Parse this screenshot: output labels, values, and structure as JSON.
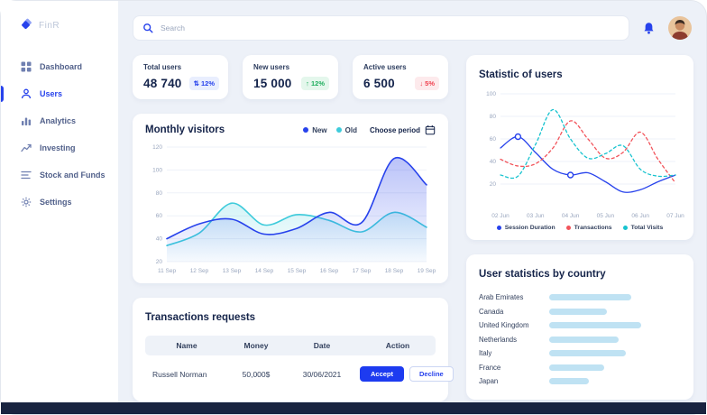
{
  "app": {
    "logo_text": "FinR"
  },
  "sidebar": {
    "items": [
      {
        "label": "Dashboard"
      },
      {
        "label": "Users"
      },
      {
        "label": "Analytics"
      },
      {
        "label": "Investing"
      },
      {
        "label": "Stock and Funds"
      },
      {
        "label": "Settings"
      }
    ],
    "active_label": "Users"
  },
  "topbar": {
    "search_placeholder": "Search"
  },
  "stats": [
    {
      "label": "Total users",
      "value": "48 740",
      "trend_icon": "⇅",
      "change": "12%"
    },
    {
      "label": "New users",
      "value": "15 000",
      "trend_icon": "↑",
      "change": "12%"
    },
    {
      "label": "Active users",
      "value": "6 500",
      "trend_icon": "↓",
      "change": "5%"
    }
  ],
  "monthly": {
    "title": "Monthly visitors",
    "period_label": "Choose period"
  },
  "transactions": {
    "title": "Transactions requests",
    "columns": [
      "Name",
      "Money",
      "Date",
      "Action"
    ],
    "rows": [
      {
        "name": "Russell Norman",
        "money": "50,000$",
        "date": "30/06/2021",
        "accept_label": "Accept",
        "decline_label": "Decline"
      }
    ]
  },
  "right": {
    "stat_title": "Statistic of users",
    "country_title": "User statistics by country"
  },
  "chart_data": [
    {
      "type": "area",
      "title": "Monthly visitors",
      "x_labels": [
        "11 Sep",
        "12 Sep",
        "13 Sep",
        "14 Sep",
        "15 Sep",
        "16 Sep",
        "17 Sep",
        "18 Sep",
        "19 Sep"
      ],
      "y_ticks": [
        20,
        40,
        60,
        80,
        100,
        120
      ],
      "ylim": [
        20,
        120
      ],
      "stroke_width": 1.6,
      "series": [
        {
          "name": "Old",
          "color": "#3ecbdb",
          "fill_opacity": 0.22,
          "values": [
            34,
            45,
            71,
            52,
            61,
            56,
            46,
            63,
            50
          ]
        },
        {
          "name": "New",
          "color": "#2742ec",
          "fill_opacity": 0.32,
          "values": [
            40,
            53,
            57,
            44,
            49,
            63,
            54,
            110,
            87
          ]
        }
      ]
    },
    {
      "type": "line",
      "title": "Statistic of users",
      "x_labels": [
        "02 Jun",
        "03 Jun",
        "04 Jun",
        "05 Jun",
        "06 Jun",
        "07 Jun"
      ],
      "y_ticks": [
        20,
        40,
        60,
        80,
        100
      ],
      "ylim": [
        0,
        100
      ],
      "stroke_width": 1.3,
      "series": [
        {
          "name": "Session Duration",
          "color": "#2742ec",
          "markers": [
            1,
            4
          ],
          "values": [
            52,
            62,
            48,
            33,
            28,
            30,
            22,
            13,
            15,
            22,
            28
          ]
        },
        {
          "name": "Transactions",
          "color": "#f2545b",
          "dash": "3 3",
          "values": [
            42,
            36,
            38,
            52,
            76,
            60,
            43,
            48,
            66,
            42,
            21
          ]
        },
        {
          "name": "Total Visits",
          "color": "#17c3cf",
          "dash": "3 3",
          "values": [
            28,
            27,
            55,
            86,
            60,
            43,
            47,
            54,
            33,
            27,
            28
          ]
        }
      ]
    },
    {
      "type": "bar",
      "title": "User statistics by country",
      "categories": [
        "Arab Emirates",
        "Canada",
        "United Kingdom",
        "Netherlands",
        "Italy",
        "France",
        "Japan"
      ],
      "values": [
        62,
        44,
        70,
        53,
        58,
        42,
        30
      ],
      "bar_color": "#bfe2f3",
      "xlim": [
        0,
        100
      ]
    }
  ]
}
